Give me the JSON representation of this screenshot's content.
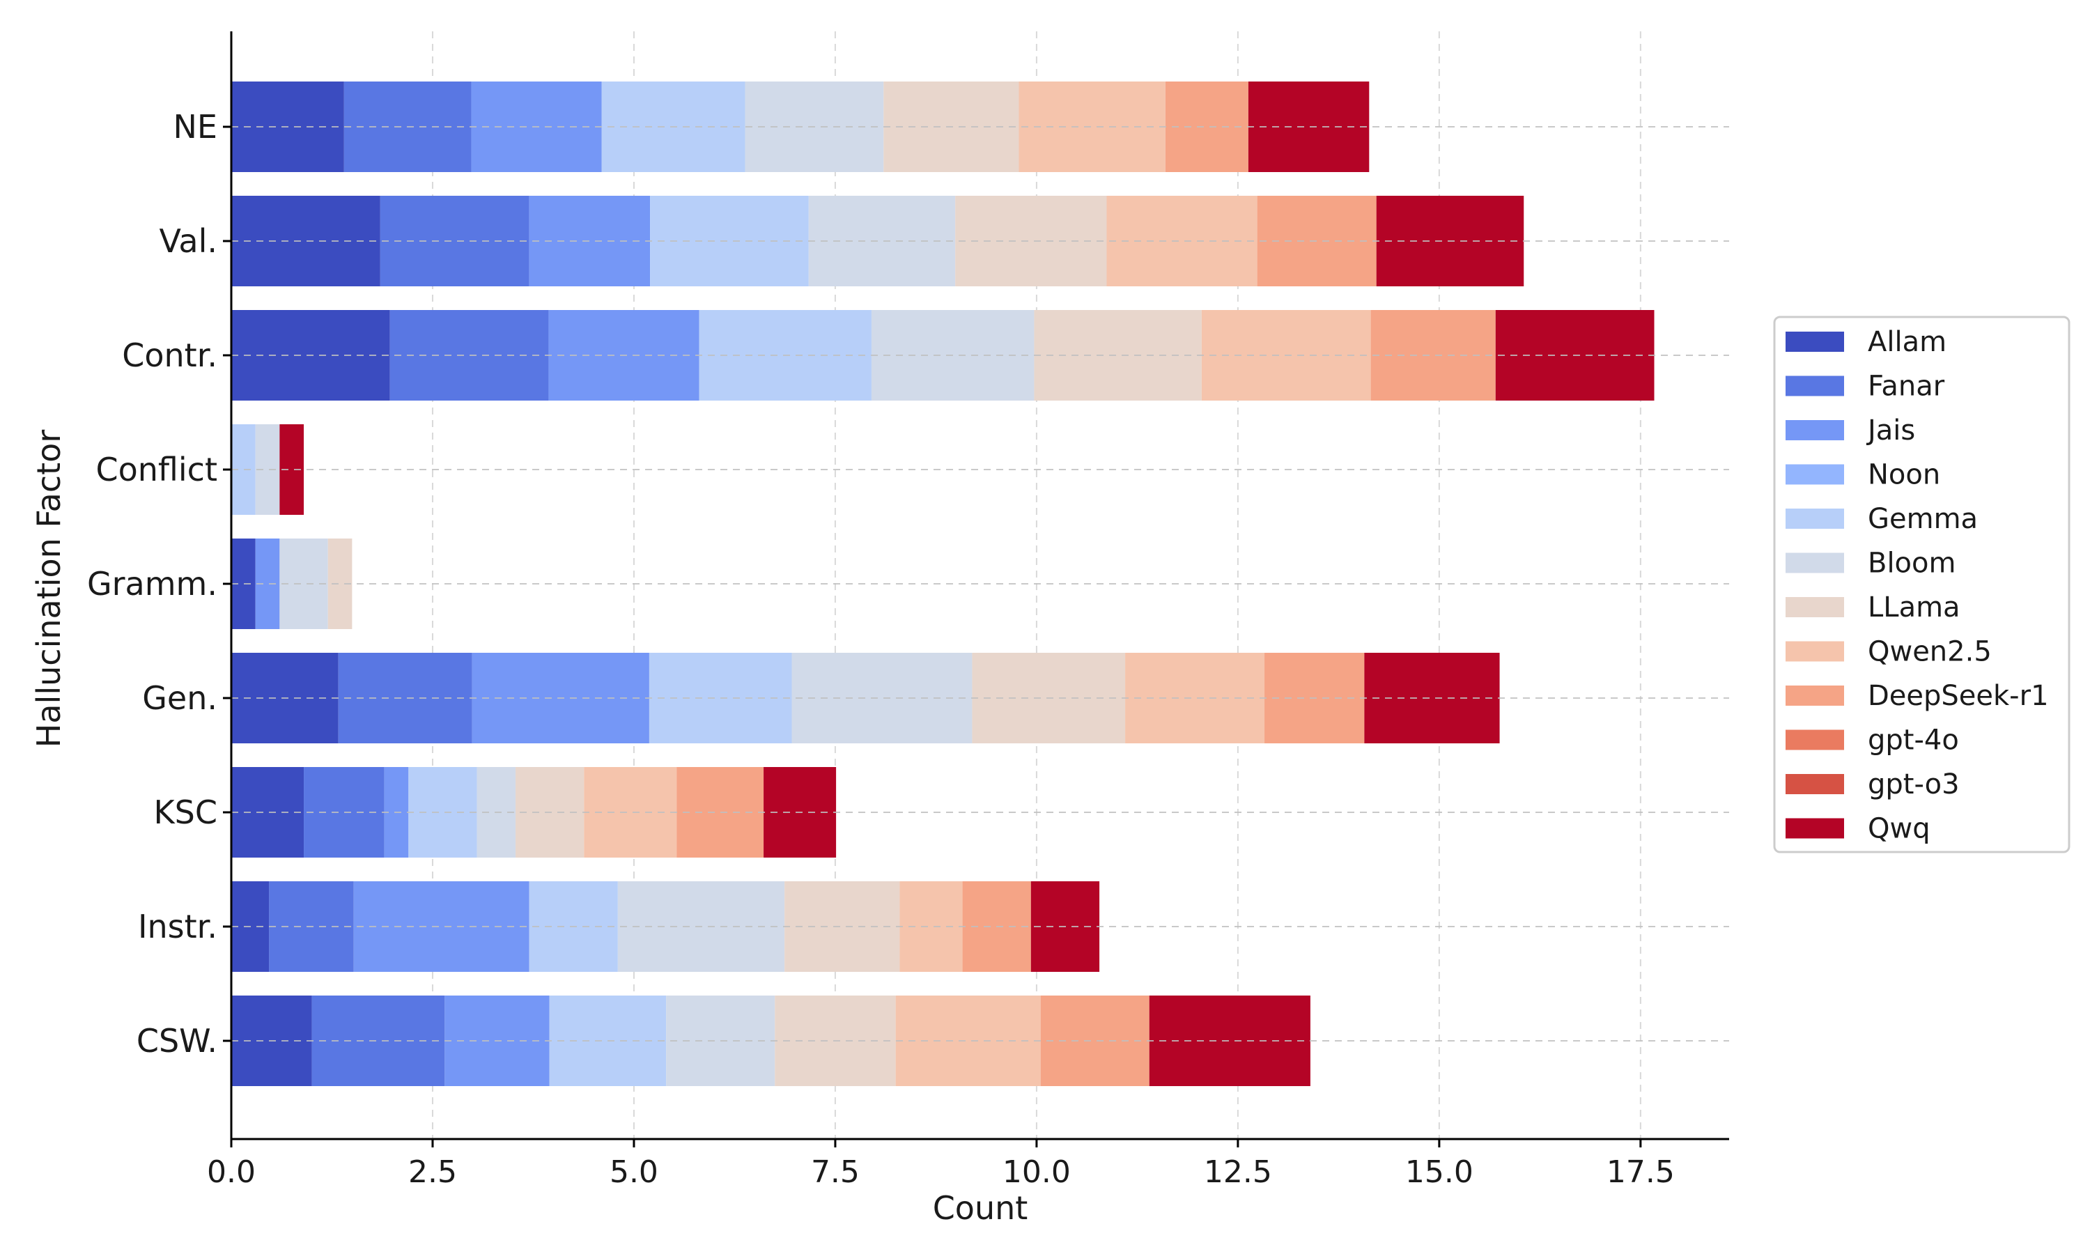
{
  "chart_data": {
    "type": "bar",
    "orientation": "horizontal",
    "stacked": true,
    "title": "",
    "xlabel": "Count",
    "ylabel": "Hallucination Factor",
    "xlim": [
      0,
      18.6
    ],
    "xticks": [
      "0.0",
      "2.5",
      "5.0",
      "7.5",
      "10.0",
      "12.5",
      "15.0",
      "17.5"
    ],
    "xtick_values": [
      0,
      2.5,
      5,
      7.5,
      10,
      12.5,
      15,
      17.5
    ],
    "grid": true,
    "legend_position": "center-right",
    "categories": [
      "NE",
      "Val.",
      "Contr.",
      "Conflict",
      "Gramm.",
      "Gen.",
      "KSC",
      "Instr.",
      "CSW."
    ],
    "series": [
      {
        "name": "Allam",
        "color": "#3b4cc0",
        "values": [
          1.4,
          1.85,
          1.97,
          0,
          0.3,
          1.33,
          0.9,
          0.47,
          1.0
        ]
      },
      {
        "name": "Fanar",
        "color": "#5977e3",
        "values": [
          1.58,
          1.85,
          1.97,
          0,
          0,
          1.66,
          1.0,
          1.05,
          1.65
        ]
      },
      {
        "name": "Jais",
        "color": "#7597f6",
        "values": [
          1.62,
          1.5,
          1.87,
          0,
          0.3,
          2.2,
          0.3,
          2.18,
          1.3
        ]
      },
      {
        "name": "Noon",
        "color": "#93b5fe",
        "values": [
          0,
          0,
          0,
          0,
          0,
          0,
          0,
          0,
          0
        ]
      },
      {
        "name": "Gemma",
        "color": "#b7cff9",
        "values": [
          1.78,
          1.97,
          2.14,
          0.3,
          0,
          1.77,
          0.85,
          1.1,
          1.45
        ]
      },
      {
        "name": "Bloom",
        "color": "#d1dae9",
        "values": [
          1.72,
          1.82,
          2.02,
          0.3,
          0.6,
          2.24,
          0.48,
          2.07,
          1.35
        ]
      },
      {
        "name": "LLama",
        "color": "#e8d6cc",
        "values": [
          1.68,
          1.88,
          2.08,
          0,
          0.3,
          1.9,
          0.85,
          1.43,
          1.5
        ]
      },
      {
        "name": "Qwen2.5",
        "color": "#f5c4ac",
        "values": [
          1.82,
          1.87,
          2.1,
          0,
          0,
          1.73,
          1.15,
          0.78,
          1.8
        ]
      },
      {
        "name": "DeepSeek-r1",
        "color": "#f5a486",
        "values": [
          1.03,
          1.48,
          1.55,
          0,
          0,
          1.24,
          1.08,
          0.85,
          1.35
        ]
      },
      {
        "name": "gpt-4o",
        "color": "#ea7b60",
        "values": [
          0,
          0,
          0,
          0,
          0,
          0,
          0,
          0,
          0
        ]
      },
      {
        "name": "gpt-o3",
        "color": "#d65244",
        "values": [
          0,
          0,
          0,
          0,
          0,
          0,
          0,
          0,
          0
        ]
      },
      {
        "name": "Qwq",
        "color": "#b40426",
        "values": [
          1.5,
          1.83,
          1.97,
          0.3,
          0,
          1.68,
          0.9,
          0.85,
          2.0
        ]
      }
    ]
  }
}
